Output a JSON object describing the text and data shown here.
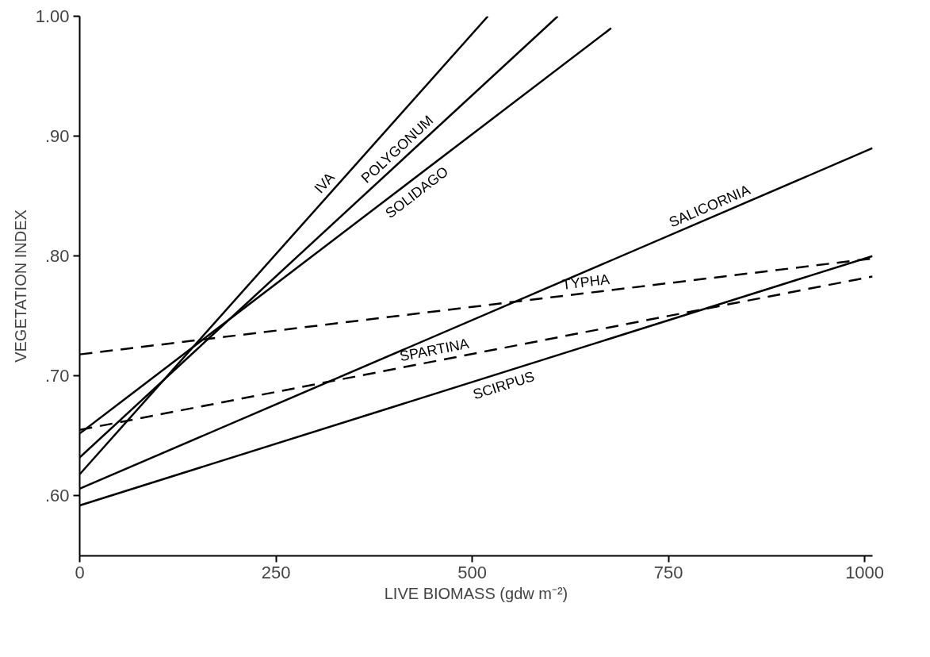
{
  "chart_data": {
    "type": "line",
    "xlabel": "LIVE BIOMASS (gdw m⁻²)",
    "ylabel": "VEGETATION INDEX",
    "xlim": [
      0,
      1010
    ],
    "ylim": [
      0.55,
      1.0
    ],
    "xticks": [
      0,
      250,
      500,
      750,
      1000
    ],
    "yticks": [
      {
        "value": 0.6,
        "label": ".60"
      },
      {
        "value": 0.7,
        "label": ".70"
      },
      {
        "value": 0.8,
        "label": ".80"
      },
      {
        "value": 0.9,
        "label": ".90"
      },
      {
        "value": 1.0,
        "label": "1.00"
      }
    ],
    "grid": false,
    "series": [
      {
        "name": "IVA",
        "color": "#000000",
        "line_style": "solid",
        "x": [
          0,
          520
        ],
        "values": [
          0.618,
          1.0
        ]
      },
      {
        "name": "POLYGONUM",
        "color": "#000000",
        "line_style": "solid",
        "x": [
          0,
          609
        ],
        "values": [
          0.632,
          1.0
        ]
      },
      {
        "name": "SOLIDAGO",
        "color": "#000000",
        "line_style": "solid",
        "x": [
          0,
          677
        ],
        "values": [
          0.652,
          0.99
        ]
      },
      {
        "name": "SALICORNIA",
        "color": "#000000",
        "line_style": "solid",
        "x": [
          0,
          1010
        ],
        "values": [
          0.606,
          0.89
        ]
      },
      {
        "name": "TYPHA",
        "color": "#000000",
        "line_style": "dashed",
        "x": [
          0,
          1010
        ],
        "values": [
          0.718,
          0.798
        ]
      },
      {
        "name": "SPARTINA",
        "color": "#000000",
        "line_style": "dashed",
        "x": [
          0,
          1010
        ],
        "values": [
          0.655,
          0.783
        ]
      },
      {
        "name": "SCIRPUS",
        "color": "#000000",
        "line_style": "solid",
        "x": [
          0,
          1010
        ],
        "values": [
          0.592,
          0.8
        ]
      }
    ]
  }
}
